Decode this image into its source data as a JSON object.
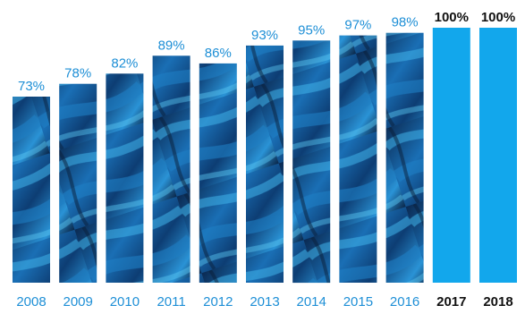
{
  "chart_data": {
    "type": "bar",
    "categories": [
      "2008",
      "2009",
      "2010",
      "2011",
      "2012",
      "2013",
      "2014",
      "2015",
      "2016",
      "2017",
      "2018"
    ],
    "values": [
      73,
      78,
      82,
      89,
      86,
      93,
      95,
      97,
      98,
      100,
      100
    ],
    "value_labels": [
      "73%",
      "78%",
      "82%",
      "89%",
      "86%",
      "93%",
      "95%",
      "97%",
      "98%",
      "100%",
      "100%"
    ],
    "highlighted_categories": [
      "2017",
      "2018"
    ],
    "title": "",
    "xlabel": "",
    "ylabel": "",
    "ylim": [
      0,
      100
    ],
    "grid": false,
    "legend": "none",
    "colors": {
      "bar_photo_dark": "#0b1f3d",
      "bar_photo_mid": "#1565a8",
      "bar_photo_light": "#3fb3e8",
      "bar_highlight": "#12a7ec",
      "label_blue": "#1e8fd6",
      "label_highlight": "#111111"
    }
  }
}
